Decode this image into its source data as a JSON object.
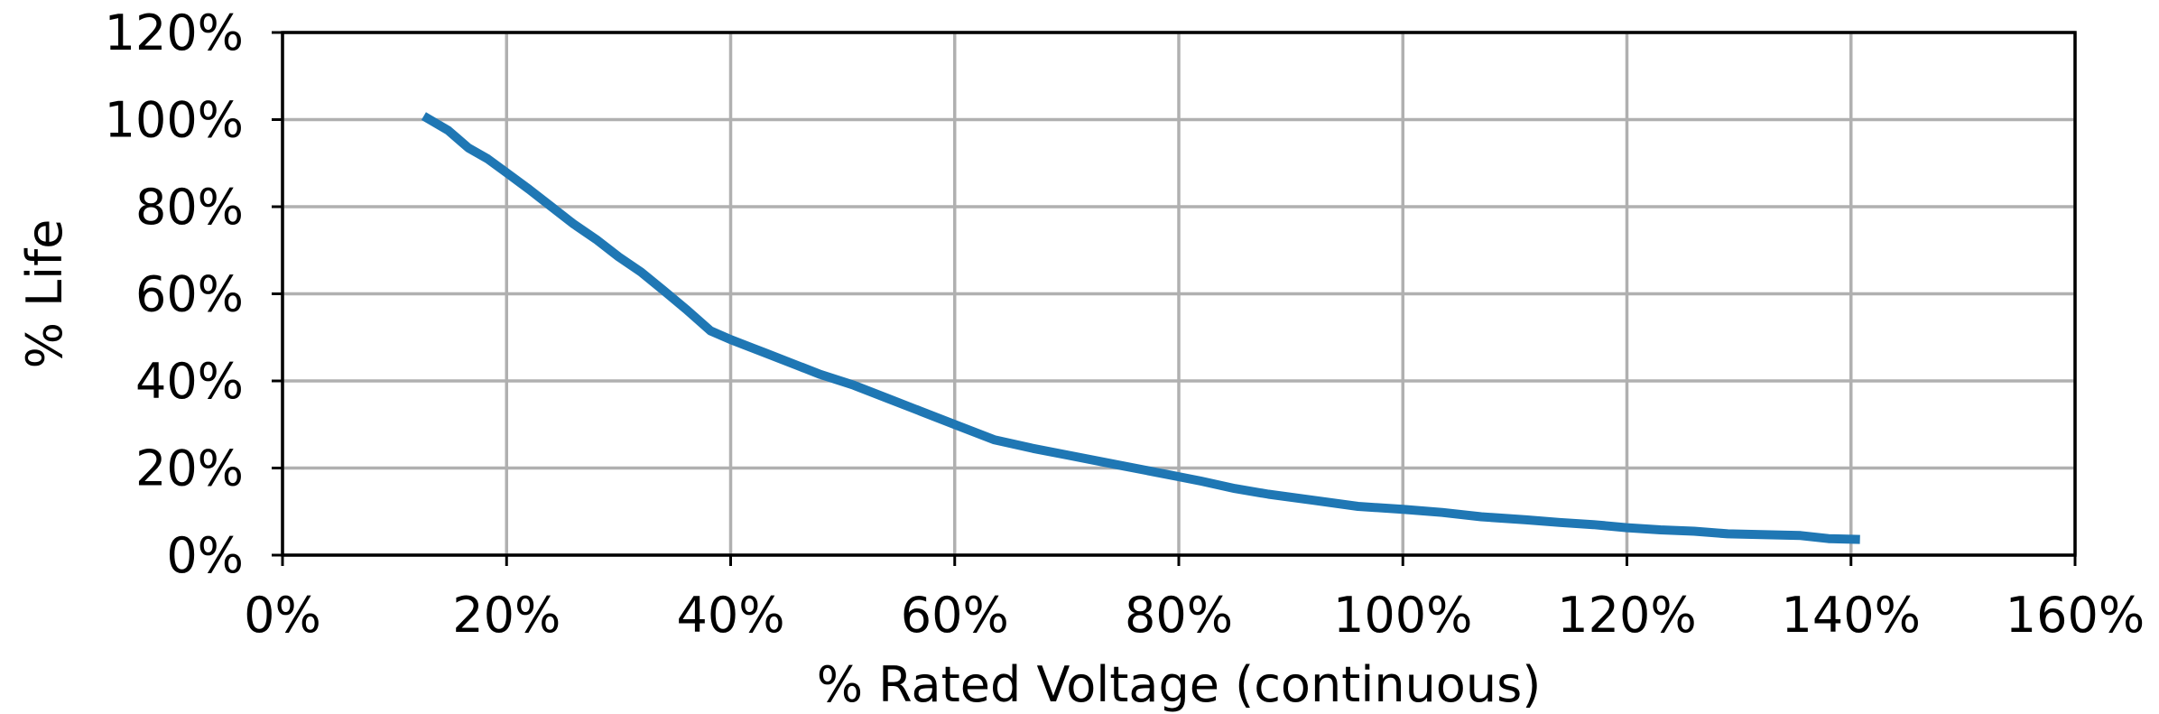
{
  "chart_data": {
    "type": "line",
    "title": "",
    "xlabel": "% Rated Voltage (continuous)",
    "ylabel": "% Life",
    "xlim": [
      0,
      160
    ],
    "ylim": [
      0,
      120
    ],
    "x_ticks": [
      0,
      20,
      40,
      60,
      80,
      100,
      120,
      140,
      160
    ],
    "y_ticks": [
      0,
      20,
      40,
      60,
      80,
      100,
      120
    ],
    "x_tick_labels": [
      "0%",
      "20%",
      "40%",
      "60%",
      "80%",
      "100%",
      "120%",
      "140%",
      "160%"
    ],
    "y_tick_labels": [
      "0%",
      "20%",
      "40%",
      "60%",
      "80%",
      "100%",
      "120%"
    ],
    "grid": true,
    "legend": "none",
    "series": [
      {
        "color": "#1f77b4",
        "x": [
          12.6,
          14.8,
          16.6,
          18.3,
          20.0,
          22.0,
          24.0,
          26.0,
          28.0,
          30.0,
          32.0,
          34.0,
          36.0,
          38.2,
          40.0,
          43.0,
          46.0,
          48.0,
          51.0,
          54.0,
          57.0,
          60.0,
          63.5,
          67.0,
          70.0,
          74.0,
          77.0,
          80.0,
          82.0,
          85.0,
          88.0,
          92.0,
          96.0,
          100.0,
          103.5,
          107.0,
          111.0,
          114.0,
          117.0,
          120.0,
          123.0,
          126.0,
          129.0,
          132.0,
          135.5,
          138.0,
          140.8
        ],
        "y": [
          100.8,
          97.5,
          93.5,
          91.0,
          87.8,
          84.0,
          80.0,
          76.0,
          72.5,
          68.5,
          65.0,
          60.8,
          56.5,
          51.5,
          49.5,
          46.5,
          43.5,
          41.5,
          39.0,
          36.0,
          33.0,
          30.0,
          26.5,
          24.5,
          23.0,
          21.0,
          19.5,
          18.0,
          17.0,
          15.3,
          14.0,
          12.6,
          11.2,
          10.5,
          9.8,
          8.8,
          8.1,
          7.5,
          7.0,
          6.3,
          5.8,
          5.5,
          4.9,
          4.7,
          4.5,
          3.8,
          3.6
        ]
      }
    ]
  }
}
